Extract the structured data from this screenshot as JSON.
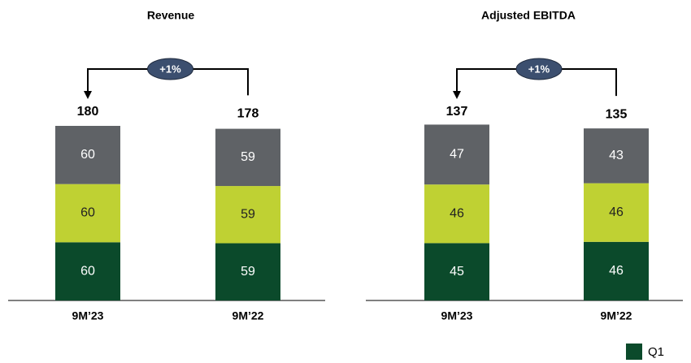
{
  "chart_data": [
    {
      "type": "stacked_bar",
      "title": "Revenue",
      "categories": [
        "9M’23",
        "9M’22"
      ],
      "series": [
        {
          "name": "Q1",
          "color": "#0b4a2b",
          "values": [
            60,
            59
          ]
        },
        {
          "color": "#bfd133",
          "values": [
            60,
            59
          ]
        },
        {
          "color": "#5f6266",
          "values": [
            60,
            59
          ]
        }
      ],
      "totals": [
        180,
        178
      ],
      "annotation": "+1%"
    },
    {
      "type": "stacked_bar",
      "title": "Adjusted EBITDA",
      "categories": [
        "9M’23",
        "9M’22"
      ],
      "series": [
        {
          "color": "#0b4a2b",
          "values": [
            45,
            46
          ]
        },
        {
          "color": "#bfd133",
          "values": [
            46,
            46
          ]
        },
        {
          "color": "#5f6266",
          "values": [
            47,
            43
          ]
        }
      ],
      "totals": [
        137,
        135
      ],
      "annotation": "+1%"
    }
  ]
}
